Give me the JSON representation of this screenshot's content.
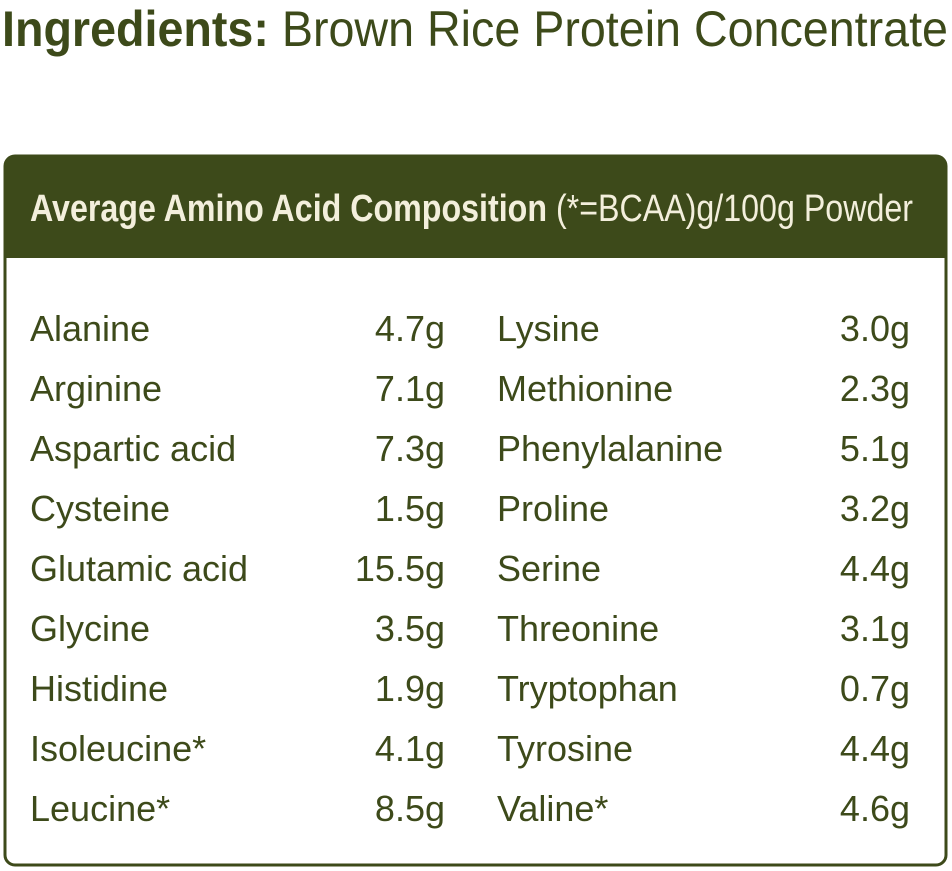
{
  "ingredients": {
    "label": "Ingredients:",
    "text": "Brown Rice Protein Concentrate"
  },
  "table": {
    "header": {
      "title": "Average Amino Acid Composition",
      "subtitle": "(*=BCAA)g/100g Powder"
    },
    "rows": [
      [
        "Alanine",
        "4.7g",
        "Lysine",
        "3.0g"
      ],
      [
        "Arginine",
        "7.1g",
        "Methionine",
        "2.3g"
      ],
      [
        "Aspartic acid",
        "7.3g",
        "Phenylalanine",
        "5.1g"
      ],
      [
        "Cysteine",
        "1.5g",
        "Proline",
        "3.2g"
      ],
      [
        "Glutamic acid",
        "15.5g",
        "Serine",
        "4.4g"
      ],
      [
        "Glycine",
        "3.5g",
        "Threonine",
        "3.1g"
      ],
      [
        "Histidine",
        "1.9g",
        "Tryptophan",
        "0.7g"
      ],
      [
        "Isoleucine*",
        "4.1g",
        "Tyrosine",
        "4.4g"
      ],
      [
        "Leucine*",
        "8.5g",
        "Valine*",
        "4.6g"
      ]
    ]
  }
}
